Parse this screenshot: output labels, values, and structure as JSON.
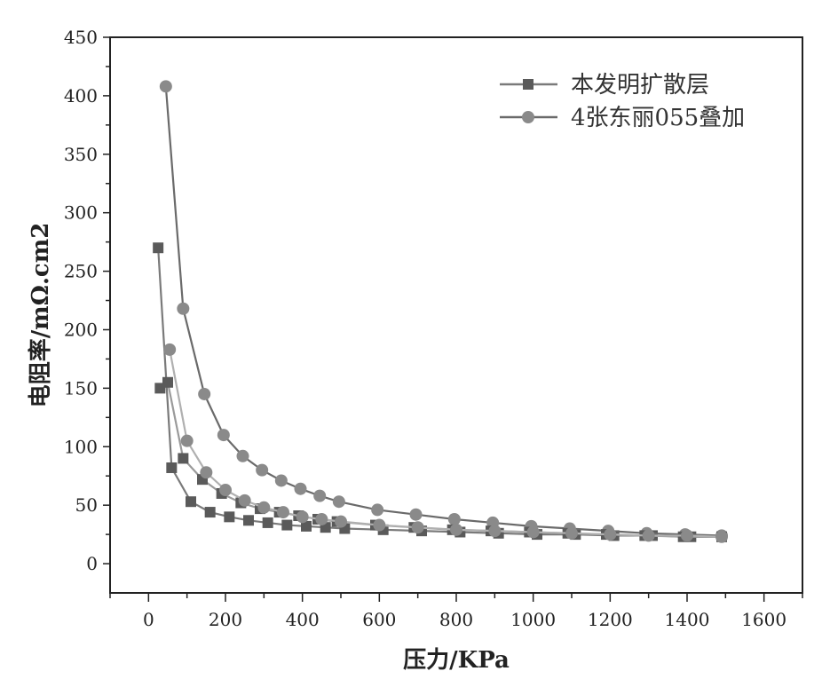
{
  "chart_data": {
    "type": "line",
    "xlabel": "压力/KPa",
    "ylabel": "电阻率/mΩ.cm2",
    "xlim": [
      -100,
      1700
    ],
    "ylim": [
      -25,
      450
    ],
    "xticks": [
      "0",
      "200",
      "400",
      "600",
      "800",
      "1000",
      "1200",
      "1400",
      "1600"
    ],
    "yticks": [
      "0",
      "50",
      "100",
      "150",
      "200",
      "250",
      "300",
      "350",
      "400",
      "450"
    ],
    "legend_position": "top-right",
    "series": [
      {
        "name": "本发明扩散层",
        "marker": "square",
        "color": "#5a5a5a",
        "line_color": "#7a7a7a",
        "x": [
          25,
          60,
          110,
          160,
          210,
          260,
          310,
          360,
          410,
          460,
          510,
          610,
          710,
          810,
          910,
          1010,
          1110,
          1210,
          1310,
          1410,
          1490
        ],
        "y": [
          270,
          82,
          53,
          44,
          40,
          37,
          35,
          33,
          32,
          31,
          30,
          29,
          28,
          27,
          26,
          25,
          25,
          24,
          24,
          23,
          23
        ]
      },
      {
        "name": "4张东丽055叠加",
        "marker": "circle",
        "color": "#8a8a8a",
        "line_color": "#6a6a6a",
        "x": [
          45,
          90,
          145,
          195,
          245,
          295,
          345,
          395,
          445,
          495,
          595,
          695,
          795,
          895,
          995,
          1095,
          1195,
          1295,
          1395,
          1490
        ],
        "y": [
          408,
          218,
          145,
          110,
          92,
          80,
          71,
          64,
          58,
          53,
          46,
          42,
          38,
          35,
          32,
          30,
          28,
          26,
          25,
          24
        ]
      },
      {
        "name": "",
        "marker": "square",
        "color": "#5a5a5a",
        "line_color": "#9a9a9a",
        "x": [
          30,
          50,
          90,
          140,
          190,
          240,
          290,
          340,
          390,
          440,
          490,
          590,
          690,
          790,
          890,
          990,
          1090,
          1190,
          1290,
          1390,
          1490
        ],
        "y": [
          150,
          155,
          90,
          72,
          60,
          52,
          47,
          44,
          41,
          38,
          36,
          33,
          31,
          29,
          28,
          27,
          26,
          25,
          24,
          23,
          23
        ]
      },
      {
        "name": "",
        "marker": "circle",
        "color": "#8a8a8a",
        "line_color": "#b0b0b0",
        "x": [
          55,
          100,
          150,
          200,
          250,
          300,
          350,
          400,
          450,
          500,
          600,
          700,
          800,
          900,
          1000,
          1100,
          1200,
          1300,
          1400,
          1490
        ],
        "y": [
          183,
          105,
          78,
          63,
          54,
          48,
          44,
          40,
          38,
          36,
          33,
          31,
          29,
          28,
          27,
          26,
          25,
          24,
          24,
          23
        ]
      }
    ]
  }
}
